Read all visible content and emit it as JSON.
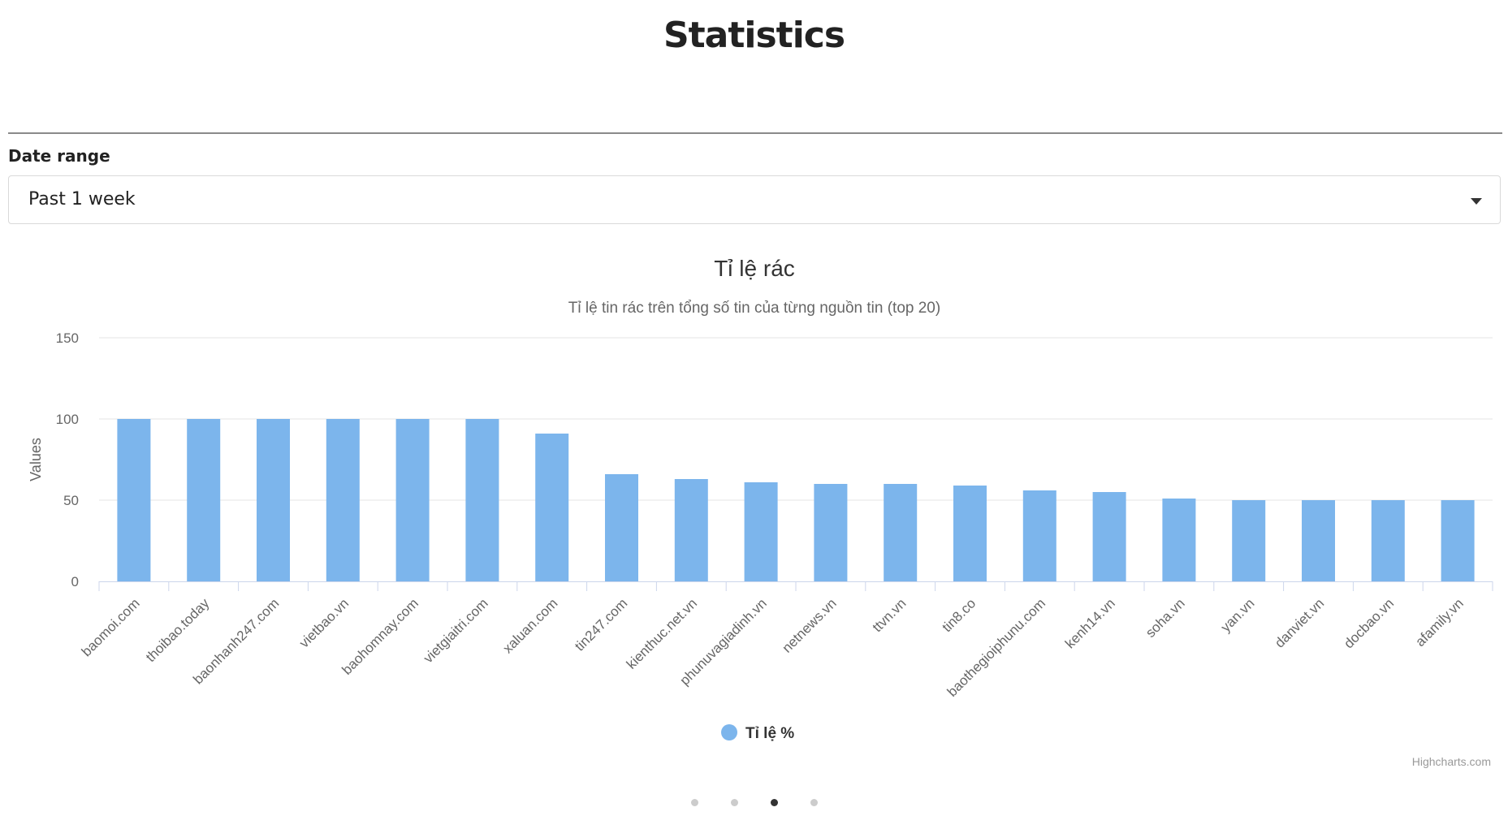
{
  "page": {
    "title": "Statistics"
  },
  "filter": {
    "label": "Date range",
    "selected": "Past 1 week"
  },
  "colors": {
    "bar": "#7cb5ec",
    "grid": "#e6e6e6",
    "axis": "#ccd6eb",
    "text": "#666666",
    "title": "#333333"
  },
  "carousel": {
    "count": 4,
    "active_index": 2
  },
  "chart_data": {
    "type": "bar",
    "title": "Tỉ lệ rác",
    "subtitle": "Tỉ lệ tin rác trên tổng số tin của từng nguồn tin (top 20)",
    "ylabel": "Values",
    "xlabel": "",
    "ylim": [
      0,
      150
    ],
    "yticks": [
      0,
      50,
      100,
      150
    ],
    "grid": true,
    "legend_position": "bottom-center",
    "credits": "Highcharts.com",
    "categories": [
      "baomoi.com",
      "thoibao.today",
      "baonhanh247.com",
      "vietbao.vn",
      "baohomnay.com",
      "vietgiaitri.com",
      "xaluan.com",
      "tin247.com",
      "kienthuc.net.vn",
      "phunuvagiadinh.vn",
      "netnews.vn",
      "ttvn.vn",
      "tin8.co",
      "baothegioiphunu.com",
      "kenh14.vn",
      "soha.vn",
      "yan.vn",
      "danviet.vn",
      "docbao.vn",
      "afamily.vn"
    ],
    "series": [
      {
        "name": "Tỉ lệ %",
        "values": [
          100,
          100,
          100,
          100,
          100,
          100,
          91,
          66,
          63,
          61,
          60,
          60,
          59,
          56,
          55,
          51,
          50,
          50,
          50,
          50
        ]
      }
    ]
  }
}
